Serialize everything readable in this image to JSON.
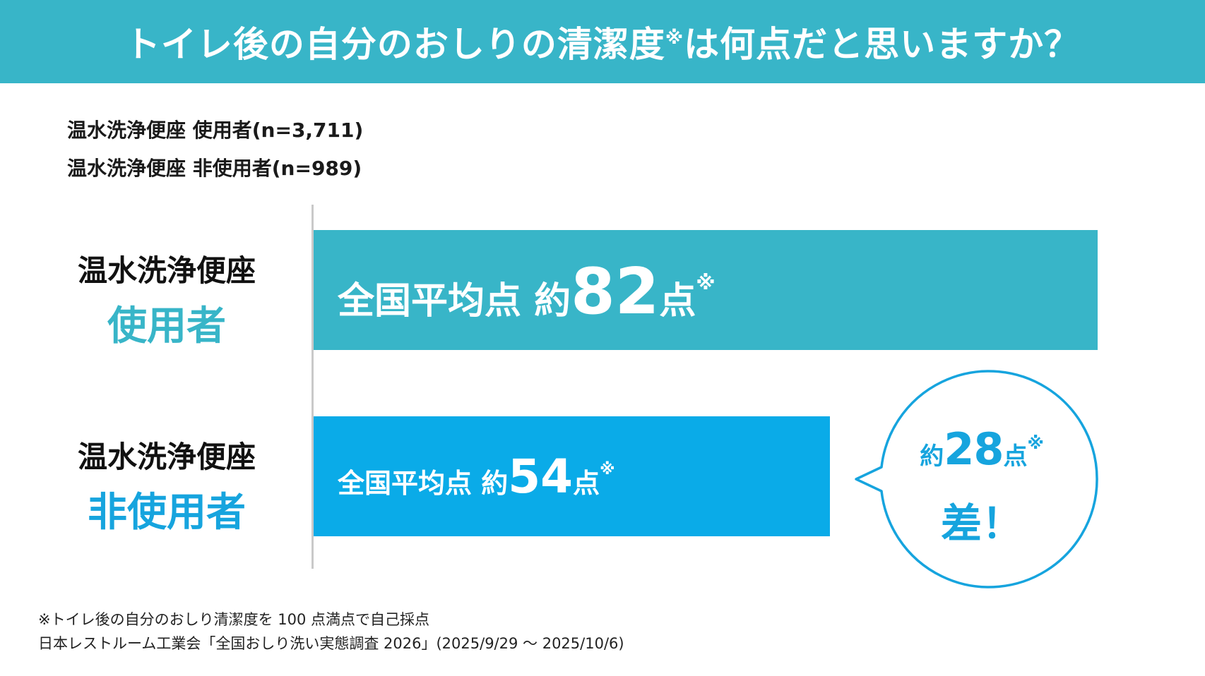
{
  "header": {
    "title_before": "トイレ後の自分のおしりの清潔度",
    "title_mark": "※",
    "title_after": "は何点だと思いますか？"
  },
  "samples": [
    "温水洗浄便座 使用者(n=3,711)",
    "温水洗浄便座 非使用者(n=989)"
  ],
  "colors": {
    "banner": "#38b5c8",
    "users_bar": "#38b5c8",
    "non_users_bar": "#0aabe8",
    "accent_text": "#16a4de"
  },
  "chart_data": {
    "type": "bar",
    "orientation": "horizontal",
    "categories": [
      "温水洗浄便座 使用者",
      "温水洗浄便座 非使用者"
    ],
    "category_labels": [
      {
        "line1": "温水洗浄便座",
        "line2": "使用者"
      },
      {
        "line1": "温水洗浄便座",
        "line2": "非使用者"
      }
    ],
    "values": [
      82,
      54
    ],
    "value_labels": [
      {
        "prefix": "全国平均点 約",
        "number": "82",
        "suffix": "点",
        "mark": "※"
      },
      {
        "prefix": "全国平均点 約",
        "number": "54",
        "suffix": "点",
        "mark": "※"
      }
    ],
    "xlim": [
      0,
      100
    ],
    "grid": false,
    "annotation": {
      "prefix": "約",
      "number": "28",
      "suffix": "点",
      "mark": "※",
      "line2": "差！",
      "difference": 28
    }
  },
  "footnotes": [
    "※トイレ後の自分のおしり清潔度を 100 点満点で自己採点",
    "日本レストルーム工業会「全国おしり洗い実態調査 2026」(2025/9/29 〜 2025/10/6)"
  ]
}
